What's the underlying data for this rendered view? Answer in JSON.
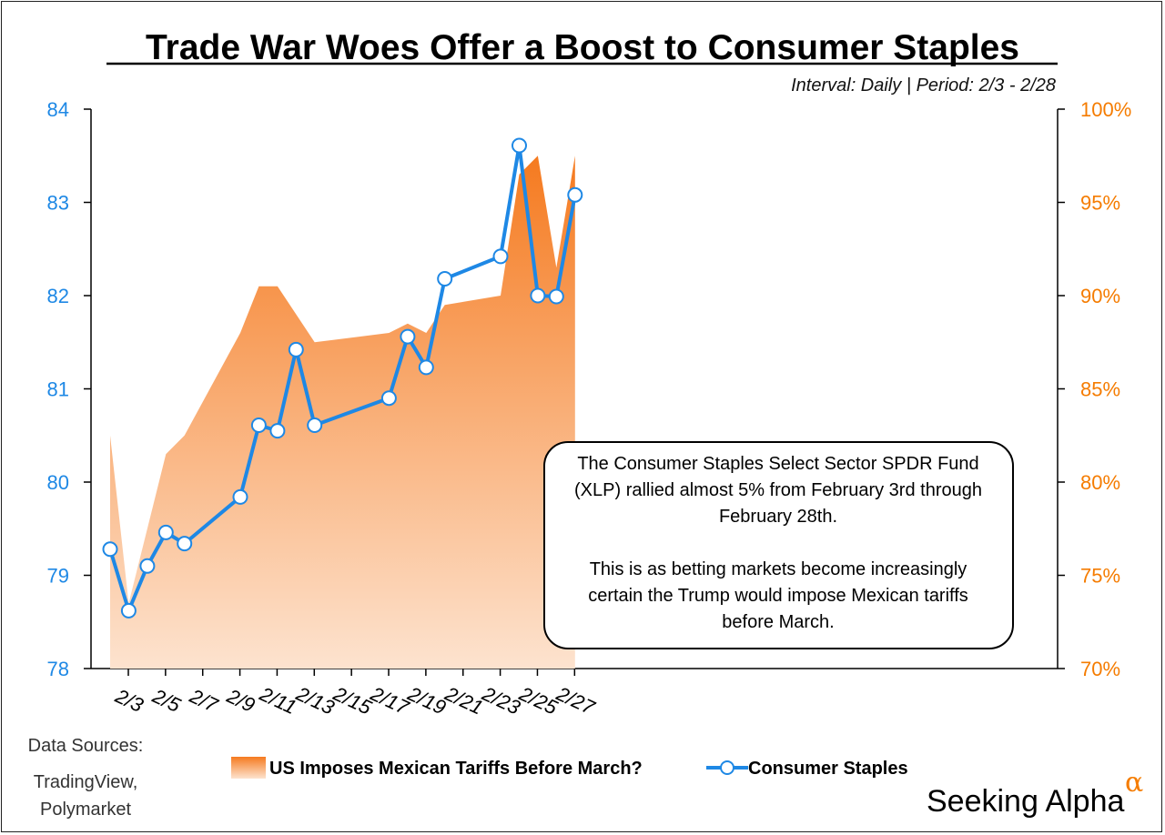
{
  "header": {
    "title": "Trade War Woes Offer a Boost to Consumer Staples",
    "subtitle": "Interval: Daily | Period: 2/3 - 2/28"
  },
  "colors": {
    "staples_line": "#1e88e5",
    "tariff_area_top": "#f57a1f",
    "tariff_area_bottom": "#fde3cf",
    "right_axis": "#f57c00",
    "left_axis": "#1e88e5"
  },
  "chart_data": {
    "type": "line",
    "x": [
      "2/3",
      "2/4",
      "2/5",
      "2/6",
      "2/7",
      "2/10",
      "2/11",
      "2/12",
      "2/13",
      "2/14",
      "2/18",
      "2/19",
      "2/20",
      "2/21",
      "2/24",
      "2/25",
      "2/26",
      "2/27",
      "2/28"
    ],
    "x_ticks": [
      "2/3",
      "2/5",
      "2/7",
      "2/9",
      "2/11",
      "2/13",
      "2/15",
      "2/17",
      "2/19",
      "2/21",
      "2/23",
      "2/25",
      "2/27"
    ],
    "left_axis": {
      "ylim": [
        78,
        84
      ],
      "ticks": [
        78,
        79,
        80,
        81,
        82,
        83,
        84
      ]
    },
    "right_axis": {
      "ylim": [
        70,
        100
      ],
      "ticks": [
        "70%",
        "75%",
        "80%",
        "85%",
        "90%",
        "95%",
        "100%"
      ]
    },
    "series": [
      {
        "name": "US Imposes Mexican Tariffs Before March?",
        "type": "area",
        "axis": "right",
        "x": [
          "2/3",
          "2/4",
          "2/6",
          "2/7",
          "2/10",
          "2/11",
          "2/12",
          "2/14",
          "2/18",
          "2/19",
          "2/20",
          "2/21",
          "2/24",
          "2/25",
          "2/26",
          "2/27",
          "2/28"
        ],
        "values": [
          82.5,
          73.5,
          81.5,
          82.5,
          88,
          90.5,
          90.5,
          87.5,
          88,
          88.5,
          88,
          89.5,
          90,
          96.5,
          97.5,
          91.5,
          97.5
        ]
      },
      {
        "name": "Consumer Staples",
        "type": "line",
        "axis": "left",
        "values": [
          79.28,
          78.62,
          79.1,
          79.46,
          79.34,
          79.84,
          80.61,
          80.55,
          81.42,
          80.61,
          80.9,
          81.56,
          81.23,
          82.18,
          82.42,
          83.61,
          82.0,
          81.99,
          83.08
        ]
      }
    ],
    "legend_position": "bottom"
  },
  "callout": {
    "lines": [
      "The Consumer Staples Select Sector SPDR Fund",
      "(XLP) rallied almost 5% from February 3rd through",
      "February 28th.",
      "",
      "This is as betting markets become increasingly",
      "certain the Trump would impose Mexican tariffs",
      "before March."
    ]
  },
  "footer": {
    "sources_label": "Data Sources:",
    "sources_line1": "TradingView,",
    "sources_line2": "Polymarket",
    "brand": "Seeking Alpha",
    "brand_symbol": "α"
  }
}
